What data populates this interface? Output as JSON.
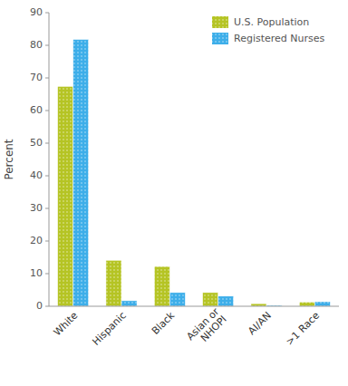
{
  "chart_data": {
    "type": "bar",
    "categories": [
      "White",
      "Hispanic",
      "Black",
      "Asian or\nNHOPI",
      "AI/AN",
      ">1 Race"
    ],
    "series": [
      {
        "name": "U.S. Population",
        "color": "#b5c424",
        "values": [
          67.4,
          14.1,
          12.2,
          4.2,
          0.8,
          1.3
        ]
      },
      {
        "name": "Registered Nurses",
        "color": "#3daee9",
        "values": [
          81.8,
          1.7,
          4.2,
          3.1,
          0.3,
          1.4
        ]
      }
    ],
    "ylabel": "Percent",
    "ylim": [
      0,
      90
    ],
    "yticks": [
      0,
      10,
      20,
      30,
      40,
      50,
      60,
      70,
      80,
      90
    ],
    "grid": false,
    "legend": "upper right"
  }
}
